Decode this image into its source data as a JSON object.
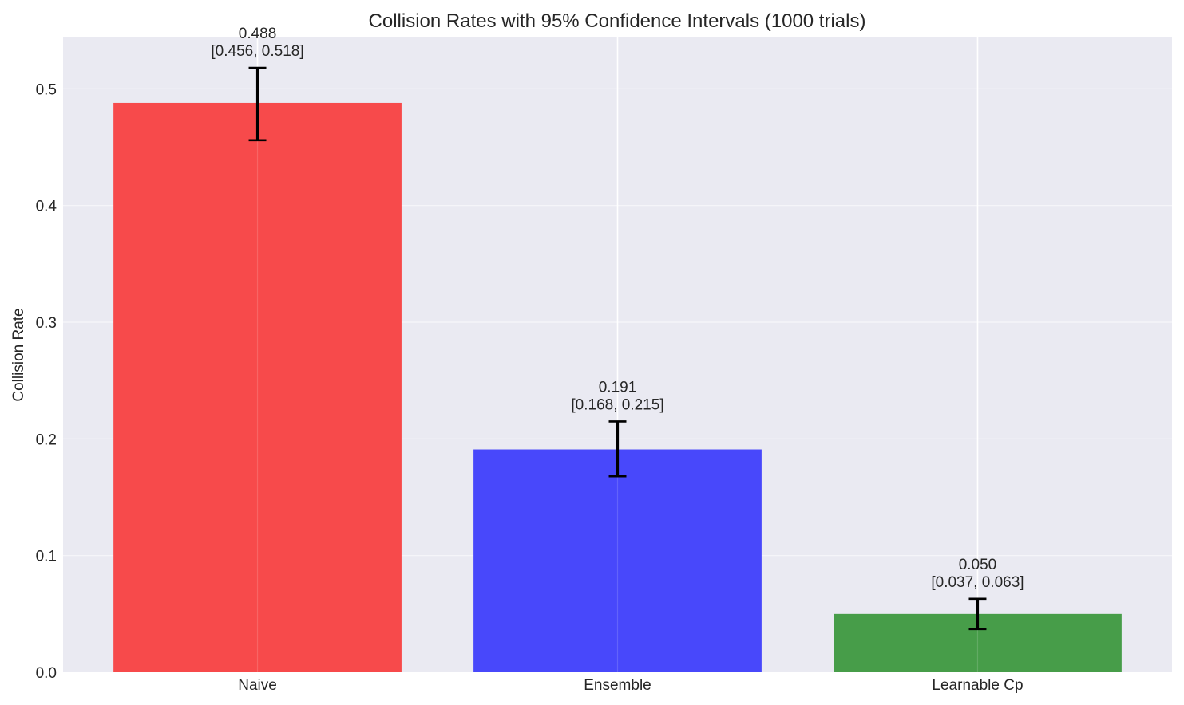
{
  "chart_data": {
    "type": "bar",
    "title": "Collision Rates with 95% Confidence Intervals (1000 trials)",
    "xlabel": "",
    "ylabel": "Collision Rate",
    "categories": [
      "Naive",
      "Ensemble",
      "Learnable Cp"
    ],
    "values": [
      0.488,
      0.191,
      0.05
    ],
    "ci_lower": [
      0.456,
      0.168,
      0.037
    ],
    "ci_upper": [
      0.518,
      0.215,
      0.063
    ],
    "value_labels": [
      "0.488",
      "0.191",
      "0.050"
    ],
    "ci_labels": [
      "[0.456, 0.518]",
      "[0.168, 0.215]",
      "[0.037, 0.063]"
    ],
    "colors": [
      "#f74a4b",
      "#4848fb",
      "#479d49"
    ],
    "ylim": [
      0,
      0.544
    ],
    "yticks": [
      0.0,
      0.1,
      0.2,
      0.3,
      0.4,
      0.5
    ],
    "ytick_labels": [
      "0.0",
      "0.1",
      "0.2",
      "0.3",
      "0.4",
      "0.5"
    ],
    "grid": true,
    "background": "#eaeaf2",
    "grid_color": "#ffffff",
    "error_bar_color": "#000000"
  }
}
